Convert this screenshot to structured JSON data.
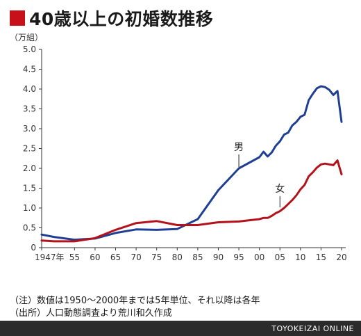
{
  "header": {
    "title": "40歳以上の初婚数推移",
    "accent_color": "#c8101a"
  },
  "notes": {
    "line1": "（注）数値は1950～2000年までは5年単位、それ以降は各年",
    "line2": "（出所）人口動態調査より荒川和久作成"
  },
  "footer": {
    "brand": "TOYOKEIZAI ONLINE"
  },
  "chart_data": {
    "type": "line",
    "ylabel": "（万組）",
    "ylim": [
      0,
      5.0
    ],
    "yticks": [
      "0",
      "0.5",
      "1.0",
      "1.5",
      "2.0",
      "2.5",
      "3.0",
      "3.5",
      "4.0",
      "4.5",
      "5.0"
    ],
    "xlim": [
      1947,
      2020
    ],
    "xticks": [
      {
        "x": 1947,
        "label": "1947年"
      },
      {
        "x": 1955,
        "label": "55"
      },
      {
        "x": 1960,
        "label": "60"
      },
      {
        "x": 1965,
        "label": "65"
      },
      {
        "x": 1970,
        "label": "70"
      },
      {
        "x": 1975,
        "label": "75"
      },
      {
        "x": 1980,
        "label": "80"
      },
      {
        "x": 1985,
        "label": "85"
      },
      {
        "x": 1990,
        "label": "90"
      },
      {
        "x": 1995,
        "label": "95"
      },
      {
        "x": 2000,
        "label": "00"
      },
      {
        "x": 2005,
        "label": "05"
      },
      {
        "x": 2010,
        "label": "10"
      },
      {
        "x": 2015,
        "label": "15"
      },
      {
        "x": 2020,
        "label": "20"
      }
    ],
    "grid": false,
    "series": [
      {
        "name": "男",
        "color": "#1f3f93",
        "x": [
          1947,
          1950,
          1955,
          1960,
          1965,
          1970,
          1975,
          1980,
          1985,
          1990,
          1995,
          2000,
          2001,
          2002,
          2003,
          2004,
          2005,
          2006,
          2007,
          2008,
          2009,
          2010,
          2011,
          2012,
          2013,
          2014,
          2015,
          2016,
          2017,
          2018,
          2019,
          2020
        ],
        "values": [
          0.33,
          0.27,
          0.2,
          0.23,
          0.37,
          0.46,
          0.45,
          0.47,
          0.72,
          1.45,
          2.0,
          2.28,
          2.42,
          2.3,
          2.4,
          2.57,
          2.68,
          2.85,
          2.9,
          3.08,
          3.17,
          3.3,
          3.35,
          3.72,
          3.88,
          4.02,
          4.07,
          4.05,
          3.98,
          3.85,
          3.95,
          3.17
        ]
      },
      {
        "name": "女",
        "color": "#b3121b",
        "x": [
          1947,
          1950,
          1955,
          1960,
          1965,
          1970,
          1975,
          1980,
          1985,
          1990,
          1995,
          2000,
          2001,
          2002,
          2003,
          2004,
          2005,
          2006,
          2007,
          2008,
          2009,
          2010,
          2011,
          2012,
          2013,
          2014,
          2015,
          2016,
          2017,
          2018,
          2019,
          2020
        ],
        "values": [
          0.18,
          0.16,
          0.16,
          0.24,
          0.45,
          0.62,
          0.67,
          0.57,
          0.57,
          0.64,
          0.66,
          0.72,
          0.75,
          0.75,
          0.8,
          0.87,
          0.92,
          1.0,
          1.1,
          1.2,
          1.32,
          1.47,
          1.58,
          1.8,
          1.9,
          2.02,
          2.1,
          2.12,
          2.1,
          2.08,
          2.2,
          1.85
        ]
      }
    ],
    "series_labels": [
      {
        "text": "男",
        "x": 1995,
        "y": 2.0
      },
      {
        "text": "女",
        "x": 2005,
        "y": 0.98
      }
    ]
  }
}
